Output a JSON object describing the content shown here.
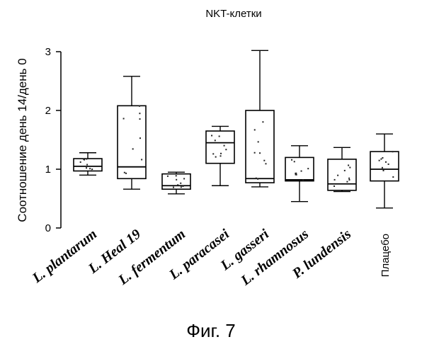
{
  "chart_data": {
    "type": "box",
    "title": "NKT-клетки",
    "xlabel": "",
    "ylabel": "Соотношение день 14/день 0",
    "ylim": [
      0,
      3
    ],
    "yticks": [
      "0",
      "1",
      "2",
      "3"
    ],
    "grid": false,
    "categories": [
      "L. plantarum",
      "L. Heal 19",
      "L. fermentum",
      "L. paracasei",
      "L. gasseri",
      "L. rhamnosus",
      "P. lundensis",
      "Плацебо"
    ],
    "boxes": [
      {
        "whisker_low": 0.9,
        "q1": 0.97,
        "median": 1.05,
        "q3": 1.18,
        "whisker_high": 1.28
      },
      {
        "whisker_low": 0.66,
        "q1": 0.84,
        "median": 1.04,
        "q3": 2.08,
        "whisker_high": 2.58
      },
      {
        "whisker_low": 0.58,
        "q1": 0.66,
        "median": 0.72,
        "q3": 0.92,
        "whisker_high": 0.95
      },
      {
        "whisker_low": 0.72,
        "q1": 1.1,
        "median": 1.45,
        "q3": 1.65,
        "whisker_high": 1.73
      },
      {
        "whisker_low": 0.7,
        "q1": 0.77,
        "median": 0.84,
        "q3": 2.0,
        "whisker_high": 3.02
      },
      {
        "whisker_low": 0.45,
        "q1": 0.8,
        "median": 0.82,
        "q3": 1.2,
        "whisker_high": 1.4
      },
      {
        "whisker_low": 0.62,
        "q1": 0.64,
        "median": 0.75,
        "q3": 1.17,
        "whisker_high": 1.37
      },
      {
        "whisker_low": 0.34,
        "q1": 0.8,
        "median": 1.0,
        "q3": 1.3,
        "whisker_high": 1.6
      }
    ]
  },
  "caption": "Фиг. 7"
}
